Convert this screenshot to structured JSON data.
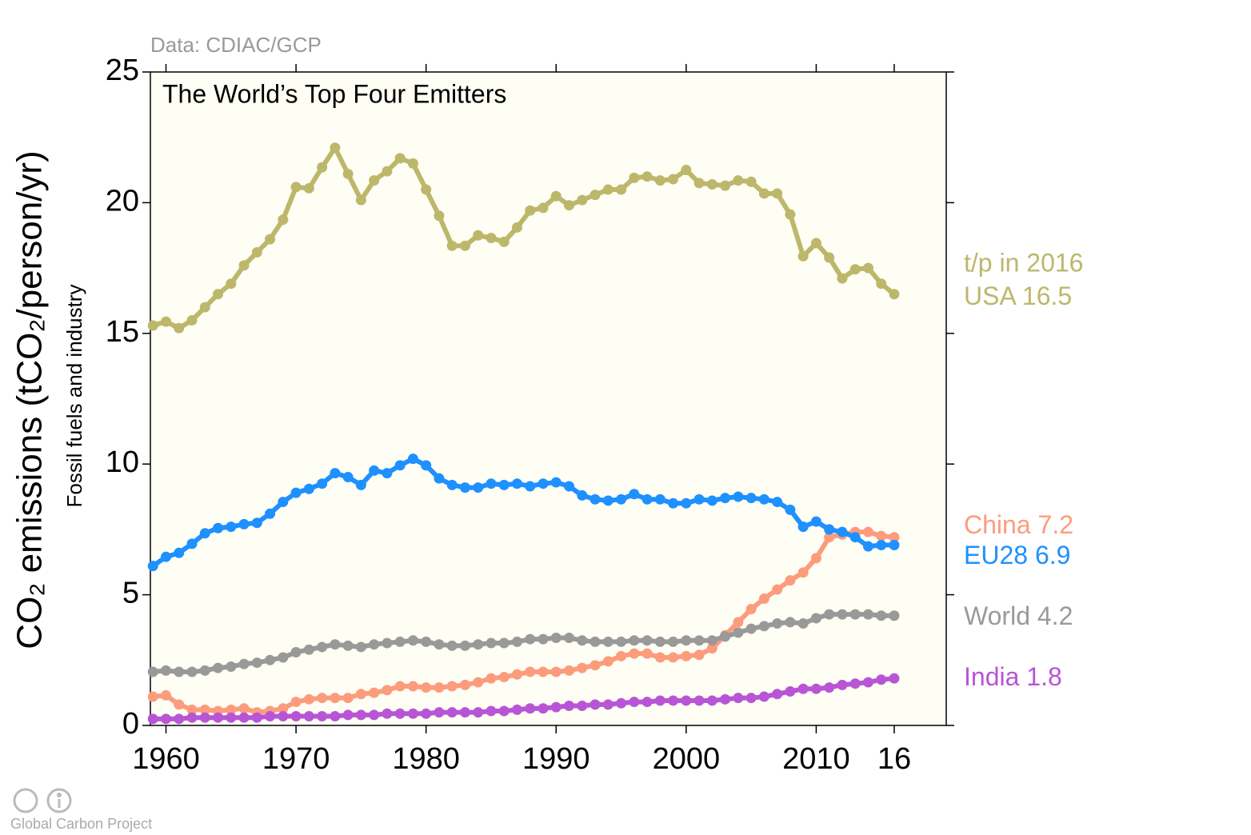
{
  "chart_data": {
    "type": "line",
    "source": "Data: CDIAC/GCP",
    "title": "The World’s Top Four Emitters",
    "ylabel": "CO₂ emissions (tCO₂/person/yr)",
    "ylabel2": "Fossil fuels and industry",
    "annotation": "t/p in 2016",
    "footer": "Global Carbon Project",
    "x": [
      1959,
      1960,
      1961,
      1962,
      1963,
      1964,
      1965,
      1966,
      1967,
      1968,
      1969,
      1970,
      1971,
      1972,
      1973,
      1974,
      1975,
      1976,
      1977,
      1978,
      1979,
      1980,
      1981,
      1982,
      1983,
      1984,
      1985,
      1986,
      1987,
      1988,
      1989,
      1990,
      1991,
      1992,
      1993,
      1994,
      1995,
      1996,
      1997,
      1998,
      1999,
      2000,
      2001,
      2002,
      2003,
      2004,
      2005,
      2006,
      2007,
      2008,
      2009,
      2010,
      2011,
      2012,
      2013,
      2014,
      2015,
      2016
    ],
    "xlim": [
      1958.8,
      2020
    ],
    "xticks": [
      1960,
      1970,
      1980,
      1990,
      2000,
      2010,
      {
        "value": 2016,
        "label": "16"
      }
    ],
    "ylim": [
      0,
      25
    ],
    "yticks": [
      0,
      5,
      10,
      15,
      20,
      25
    ],
    "series": [
      {
        "name": "USA",
        "color": "#bdb76b",
        "values": [
          15.3,
          15.45,
          15.2,
          15.5,
          16.0,
          16.5,
          16.9,
          17.6,
          18.1,
          18.6,
          19.35,
          20.6,
          20.55,
          21.35,
          22.1,
          21.1,
          20.1,
          20.85,
          21.2,
          21.7,
          21.5,
          20.5,
          19.5,
          18.35,
          18.35,
          18.75,
          18.65,
          18.5,
          19.05,
          19.7,
          19.8,
          20.25,
          19.9,
          20.1,
          20.3,
          20.5,
          20.5,
          20.95,
          21.0,
          20.85,
          20.9,
          21.25,
          20.75,
          20.7,
          20.65,
          20.85,
          20.8,
          20.35,
          20.35,
          19.55,
          17.95,
          18.45,
          17.9,
          17.1,
          17.45,
          17.5,
          16.9,
          16.5
        ]
      },
      {
        "name": "China",
        "color": "#fc9c7c",
        "values": [
          1.1,
          1.15,
          0.8,
          0.6,
          0.6,
          0.55,
          0.6,
          0.65,
          0.5,
          0.55,
          0.65,
          0.9,
          1.0,
          1.05,
          1.05,
          1.05,
          1.2,
          1.25,
          1.35,
          1.5,
          1.5,
          1.45,
          1.45,
          1.5,
          1.55,
          1.65,
          1.8,
          1.85,
          1.95,
          2.05,
          2.05,
          2.05,
          2.1,
          2.2,
          2.3,
          2.45,
          2.65,
          2.75,
          2.75,
          2.6,
          2.6,
          2.65,
          2.7,
          2.95,
          3.45,
          3.95,
          4.45,
          4.85,
          5.2,
          5.55,
          5.85,
          6.4,
          7.2,
          7.3,
          7.4,
          7.4,
          7.25,
          7.2
        ]
      },
      {
        "name": "EU28",
        "color": "#1e90ff",
        "values": [
          6.1,
          6.45,
          6.6,
          6.95,
          7.35,
          7.55,
          7.6,
          7.7,
          7.75,
          8.1,
          8.55,
          8.9,
          9.05,
          9.25,
          9.65,
          9.5,
          9.2,
          9.75,
          9.65,
          9.95,
          10.2,
          9.95,
          9.45,
          9.2,
          9.1,
          9.1,
          9.25,
          9.2,
          9.25,
          9.15,
          9.25,
          9.3,
          9.15,
          8.8,
          8.65,
          8.6,
          8.65,
          8.85,
          8.65,
          8.65,
          8.5,
          8.5,
          8.65,
          8.6,
          8.7,
          8.75,
          8.7,
          8.65,
          8.55,
          8.25,
          7.6,
          7.8,
          7.5,
          7.4,
          7.2,
          6.85,
          6.9,
          6.9
        ]
      },
      {
        "name": "World",
        "color": "#999999",
        "values": [
          2.05,
          2.1,
          2.05,
          2.05,
          2.1,
          2.2,
          2.25,
          2.35,
          2.4,
          2.5,
          2.6,
          2.8,
          2.9,
          3.0,
          3.1,
          3.05,
          3.0,
          3.1,
          3.15,
          3.2,
          3.25,
          3.2,
          3.1,
          3.05,
          3.05,
          3.1,
          3.15,
          3.15,
          3.2,
          3.3,
          3.3,
          3.35,
          3.35,
          3.25,
          3.2,
          3.2,
          3.2,
          3.25,
          3.25,
          3.2,
          3.2,
          3.25,
          3.25,
          3.25,
          3.4,
          3.55,
          3.7,
          3.8,
          3.9,
          3.95,
          3.9,
          4.1,
          4.25,
          4.25,
          4.25,
          4.25,
          4.2,
          4.2
        ]
      },
      {
        "name": "India",
        "color": "#b855d6",
        "values": [
          0.25,
          0.25,
          0.25,
          0.3,
          0.3,
          0.3,
          0.3,
          0.3,
          0.3,
          0.35,
          0.35,
          0.35,
          0.35,
          0.35,
          0.35,
          0.4,
          0.4,
          0.4,
          0.45,
          0.45,
          0.45,
          0.45,
          0.5,
          0.5,
          0.5,
          0.5,
          0.55,
          0.55,
          0.6,
          0.65,
          0.65,
          0.7,
          0.75,
          0.75,
          0.8,
          0.8,
          0.85,
          0.9,
          0.9,
          0.95,
          0.95,
          0.95,
          0.95,
          0.95,
          1.0,
          1.05,
          1.05,
          1.1,
          1.2,
          1.3,
          1.4,
          1.4,
          1.45,
          1.55,
          1.6,
          1.65,
          1.75,
          1.8
        ]
      }
    ]
  }
}
